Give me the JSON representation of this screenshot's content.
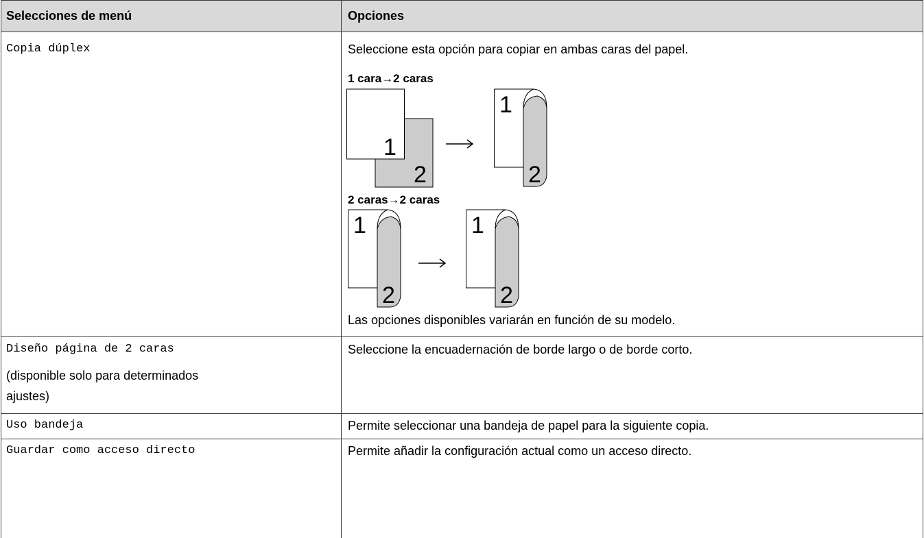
{
  "table": {
    "header": [
      "Selecciones de menú",
      "Opciones"
    ],
    "rows": [
      {
        "menu": "Copia dúplex",
        "options": "Seleccione esta opción para copiar en ambas caras del papel.",
        "diagrams": [
          {
            "caption": "1 cara→2 caras",
            "labels": [
              "1",
              "2",
              "1",
              "2"
            ]
          },
          {
            "caption": "2 caras→2 caras",
            "labels": [
              "1",
              "2",
              "1",
              "2"
            ]
          }
        ],
        "note": "Las opciones disponibles variarán en función de su modelo."
      },
      {
        "menu": "Diseño página de 2 caras",
        "menu_note": "(disponible solo para determinados ajustes)",
        "options": "Seleccione la encuadernación de borde largo o de borde corto."
      },
      {
        "menu": "Uso bandeja",
        "options": "Permite seleccionar una bandeja de papel para la siguiente copia."
      },
      {
        "menu": "Guardar como acceso directo",
        "options": "Permite añadir la configuración actual como un acceso directo."
      }
    ]
  }
}
